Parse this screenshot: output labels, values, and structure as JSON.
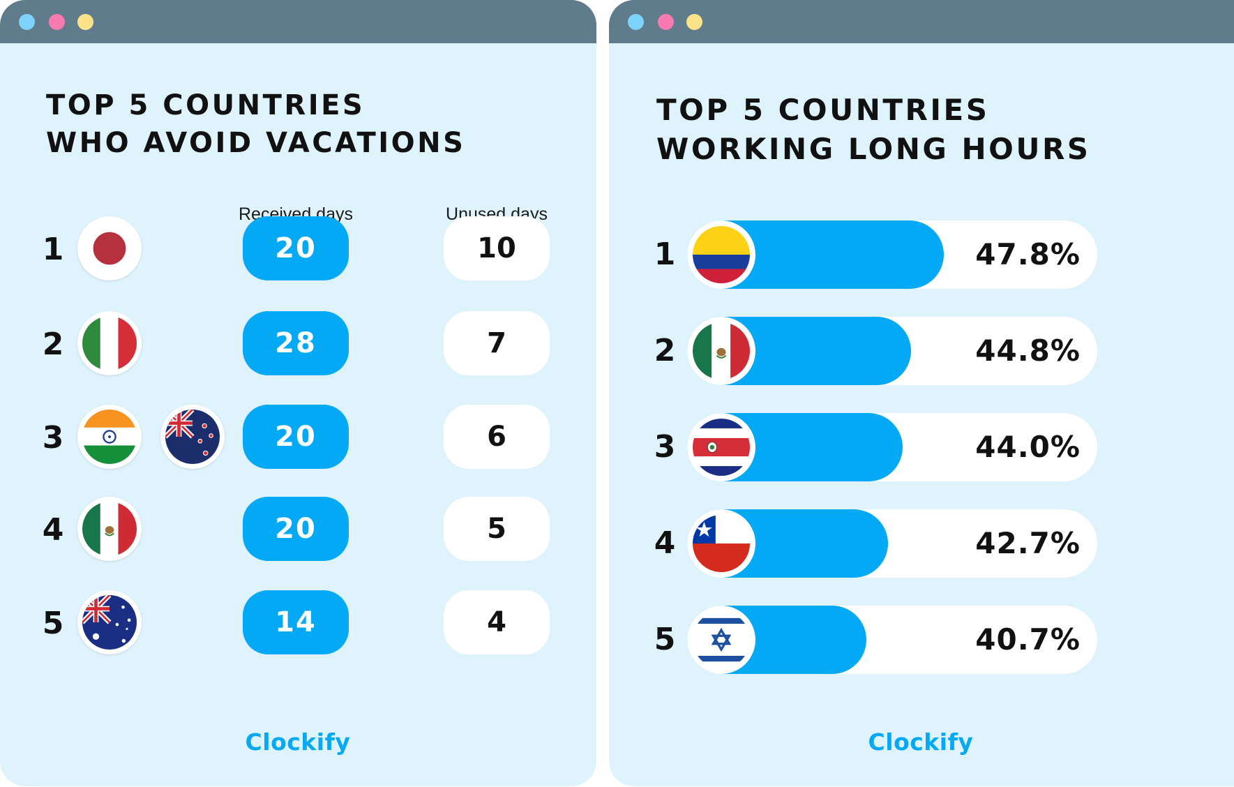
{
  "left_panel": {
    "title_line1": "TOP 5 COUNTRIES",
    "title_line2": "WHO AVOID VACATIONS",
    "header_received": "Received days",
    "header_unused": "Unused days",
    "brand": "Clockify"
  },
  "right_panel": {
    "title_line1": "TOP 5 COUNTRIES",
    "title_line2": "WORKING LONG HOURS",
    "brand": "Clockify"
  },
  "colors": {
    "accent": "#03a9f4",
    "panel_bg": "#dff3fc",
    "titlebar": "#607b8b"
  },
  "chart_data": [
    {
      "type": "table",
      "title": "TOP 5 COUNTRIES WHO AVOID VACATIONS",
      "columns": [
        "Received days",
        "Unused days"
      ],
      "rows": [
        {
          "rank": "1",
          "flags": [
            "japan-flag-icon"
          ],
          "received": 20,
          "unused": 10
        },
        {
          "rank": "2",
          "flags": [
            "italy-flag-icon"
          ],
          "received": 28,
          "unused": 7
        },
        {
          "rank": "3",
          "flags": [
            "india-flag-icon",
            "new-zealand-flag-icon"
          ],
          "received": 20,
          "unused": 6
        },
        {
          "rank": "4",
          "flags": [
            "mexico-flag-icon"
          ],
          "received": 20,
          "unused": 5
        },
        {
          "rank": "5",
          "flags": [
            "australia-flag-icon"
          ],
          "received": 14,
          "unused": 4
        }
      ]
    },
    {
      "type": "bar",
      "orientation": "horizontal",
      "title": "TOP 5 COUNTRIES WORKING LONG HOURS",
      "categories": [
        "1",
        "2",
        "3",
        "4",
        "5"
      ],
      "flags": [
        "colombia-flag-icon",
        "mexico-flag-icon",
        "costa-rica-flag-icon",
        "chile-flag-icon",
        "israel-flag-icon"
      ],
      "values": [
        47.8,
        44.8,
        44.0,
        42.7,
        40.7
      ],
      "labels": [
        "47.8%",
        "44.8%",
        "44.0%",
        "42.7%",
        "40.7%"
      ],
      "unit": "%",
      "xlim": [
        0,
        100
      ]
    }
  ]
}
